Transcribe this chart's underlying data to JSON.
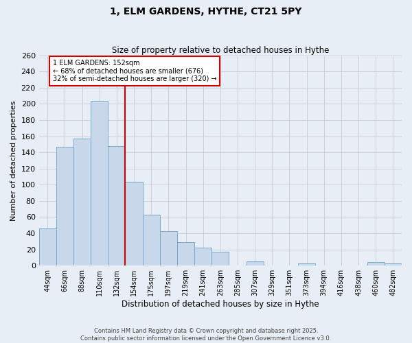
{
  "title": "1, ELM GARDENS, HYTHE, CT21 5PY",
  "subtitle": "Size of property relative to detached houses in Hythe",
  "xlabel": "Distribution of detached houses by size in Hythe",
  "ylabel": "Number of detached properties",
  "bar_labels": [
    "44sqm",
    "66sqm",
    "88sqm",
    "110sqm",
    "132sqm",
    "154sqm",
    "175sqm",
    "197sqm",
    "219sqm",
    "241sqm",
    "263sqm",
    "285sqm",
    "307sqm",
    "329sqm",
    "351sqm",
    "373sqm",
    "394sqm",
    "416sqm",
    "438sqm",
    "460sqm",
    "482sqm"
  ],
  "bar_values": [
    46,
    147,
    157,
    204,
    148,
    104,
    63,
    43,
    29,
    22,
    17,
    0,
    5,
    0,
    0,
    3,
    0,
    0,
    0,
    4,
    3
  ],
  "bar_color": "#c8d8ea",
  "bar_edge_color": "#7aaac8",
  "background_color": "#e8eef5",
  "grid_color": "#c8cdd4",
  "vline_index": 4.5,
  "vline_color": "#cc0000",
  "annotation_text": "1 ELM GARDENS: 152sqm\n← 68% of detached houses are smaller (676)\n32% of semi-detached houses are larger (320) →",
  "annotation_box_color": "white",
  "annotation_box_edge_color": "#cc0000",
  "ylim": [
    0,
    260
  ],
  "yticks": [
    0,
    20,
    40,
    60,
    80,
    100,
    120,
    140,
    160,
    180,
    200,
    220,
    240,
    260
  ],
  "footer_line1": "Contains HM Land Registry data © Crown copyright and database right 2025.",
  "footer_line2": "Contains public sector information licensed under the Open Government Licence v3.0."
}
